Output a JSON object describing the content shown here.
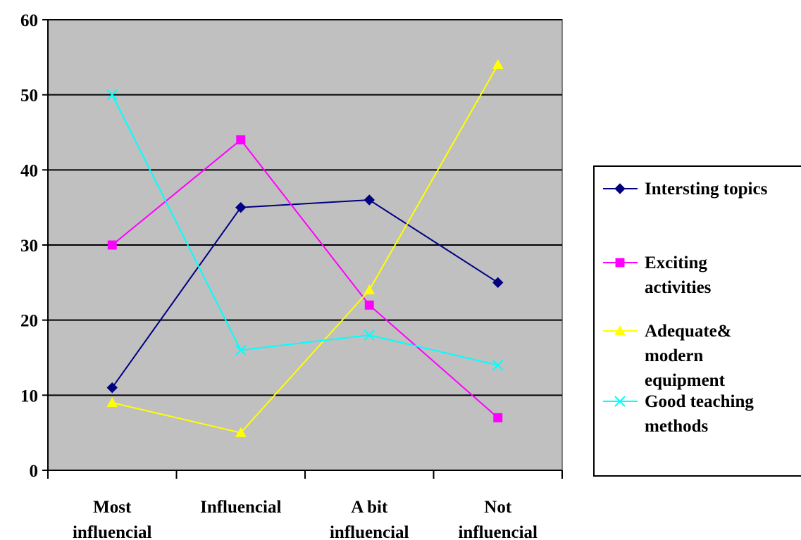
{
  "chart_data": {
    "type": "line",
    "categories": [
      [
        "Most",
        "influencial"
      ],
      [
        "Influencial"
      ],
      [
        "A bit",
        "influencial"
      ],
      [
        "Not",
        "influencial"
      ]
    ],
    "ylim": [
      0,
      60
    ],
    "yticks": [
      0,
      10,
      20,
      30,
      40,
      50,
      60
    ],
    "grid": "horizontal",
    "plot_background": "#C0C0C0",
    "legend_position": "right",
    "series": [
      {
        "name": [
          "Intersting topics"
        ],
        "color": "#000080",
        "marker": "diamond",
        "values": [
          11,
          35,
          36,
          25
        ]
      },
      {
        "name": [
          "Exciting",
          "activities"
        ],
        "color": "#FF00FF",
        "marker": "square",
        "values": [
          30,
          44,
          22,
          7
        ]
      },
      {
        "name": [
          "Adequate&",
          "modern",
          "equipment"
        ],
        "color": "#FFFF00",
        "marker": "triangle",
        "values": [
          9,
          5,
          24,
          54
        ]
      },
      {
        "name": [
          "Good teaching",
          "methods"
        ],
        "color": "#00FFFF",
        "marker": "x",
        "values": [
          50,
          16,
          18,
          14
        ]
      }
    ]
  }
}
